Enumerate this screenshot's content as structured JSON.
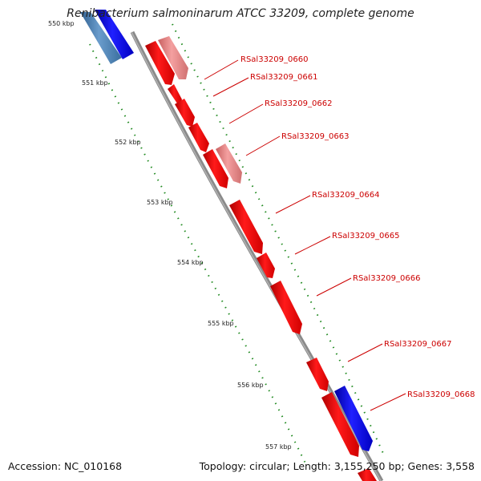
{
  "title": "Renibacterium salmoninarum ATCC 33209, complete genome",
  "footer": {
    "accession": "Accession: NC_010168",
    "topology": "Topology: circular; Length: 3,155,250 bp; Genes: 3,558"
  },
  "ticks": [
    "550 kbp",
    "551 kbp",
    "552 kbp",
    "553 kbp",
    "554 kbp",
    "555 kbp",
    "556 kbp",
    "557 kbp"
  ],
  "genes": [
    "RSal33209_0660",
    "RSal33209_0661",
    "RSal33209_0662",
    "RSal33209_0663",
    "RSal33209_0664",
    "RSal33209_0665",
    "RSal33209_0666",
    "RSal33209_0667",
    "RSal33209_0668"
  ],
  "colors": {
    "forward_gene": "#ff0000",
    "forward_gene_light": "#f08080",
    "reverse_gene": "#0000ff",
    "reverse_gene_light": "#4682b4",
    "backbone": "#888888",
    "dotted_ring": "#228b22",
    "label": "#cc0000"
  }
}
